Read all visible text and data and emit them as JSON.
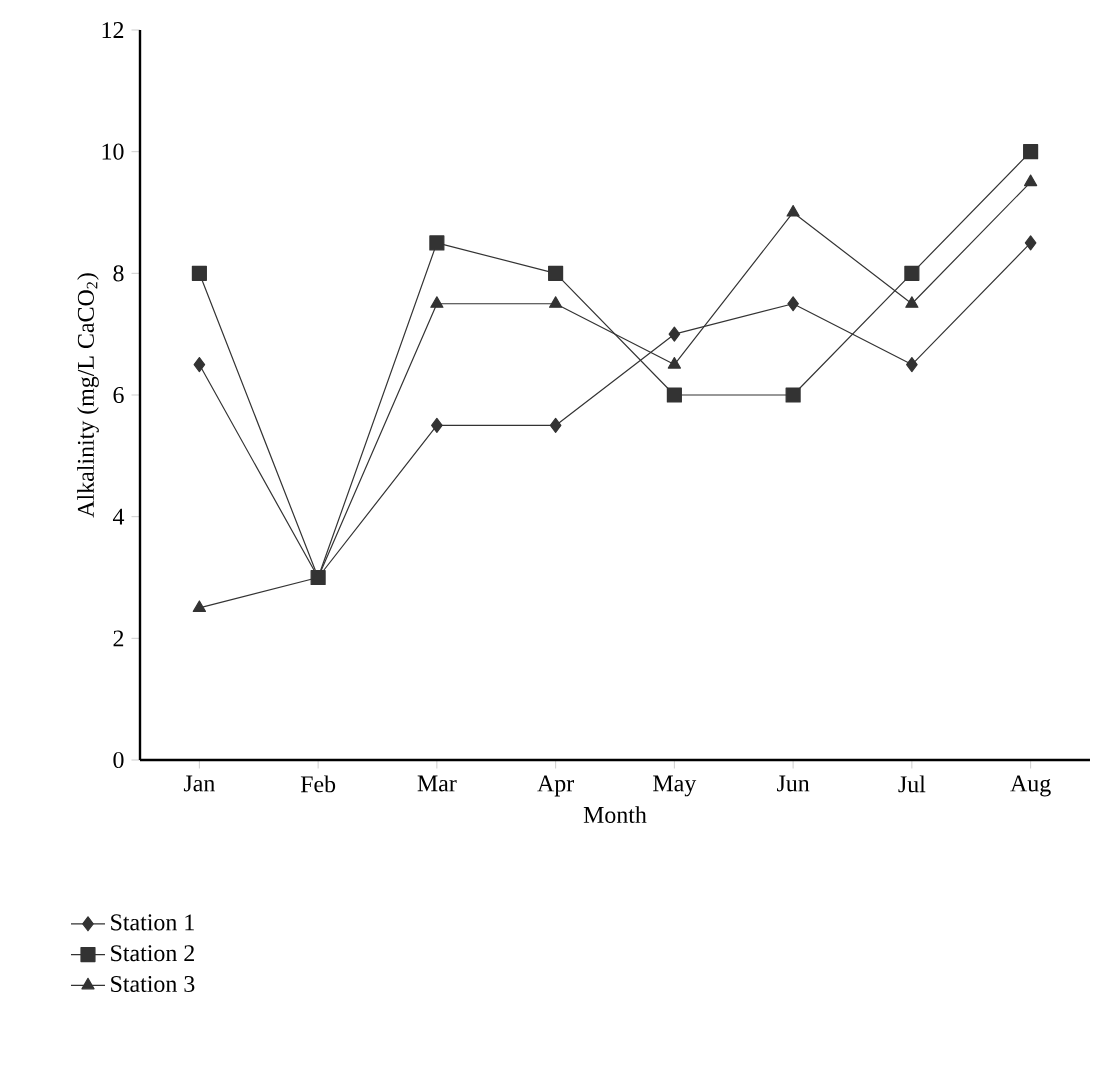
{
  "chart_data": {
    "type": "line",
    "xlabel": "Month",
    "ylabel": "Alkalinity (mg/L CaCO$_{2}$)",
    "categories": [
      "Jan",
      "Feb",
      "Mar",
      "Apr",
      "May",
      "Jun",
      "Jul",
      "Aug"
    ],
    "series": [
      {
        "name": "Station 1",
        "color": "#333333",
        "marker": "diamond",
        "values": [
          6.5,
          3,
          5.5,
          5.5,
          7,
          7.5,
          6.5,
          8.5
        ]
      },
      {
        "name": "Station 2",
        "color": "#333333",
        "marker": "square",
        "values": [
          8,
          3,
          8.5,
          8,
          6,
          6,
          8,
          10
        ]
      },
      {
        "name": "Station 3",
        "color": "#333333",
        "marker": "triangle",
        "values": [
          2.5,
          3,
          7.5,
          7.5,
          6.5,
          9,
          7.5,
          9.5
        ]
      }
    ],
    "ylim": [
      0,
      12
    ],
    "yticks": [
      0,
      2,
      4,
      6,
      8,
      10,
      12
    ],
    "grid": false,
    "legend": "bottom left",
    "line_style": "solid"
  }
}
